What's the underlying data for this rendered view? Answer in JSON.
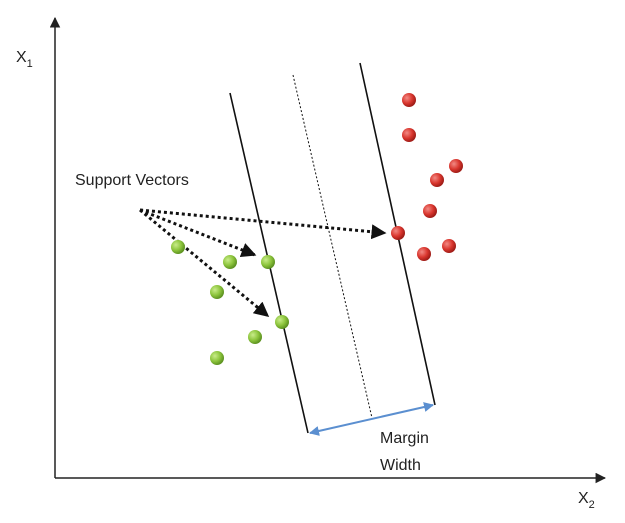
{
  "y_axis": {
    "letter": "X",
    "subscript": "1"
  },
  "x_axis": {
    "letter": "X",
    "subscript": "2"
  },
  "annotations": {
    "support_vectors": "Support Vectors",
    "margin_width": [
      "Margin",
      "Width"
    ]
  }
}
